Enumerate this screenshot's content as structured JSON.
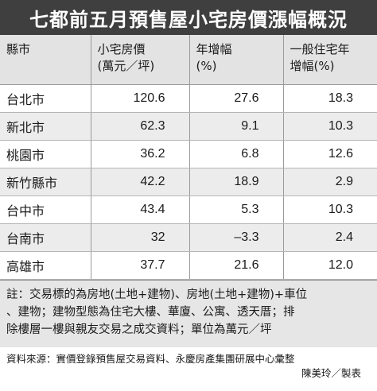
{
  "title": "七都前五月預售屋小宅房價漲幅概況",
  "table": {
    "headers": [
      {
        "lines": [
          "縣市"
        ]
      },
      {
        "lines": [
          "小宅房價",
          "(萬元／坪)"
        ]
      },
      {
        "lines": [
          "年增幅",
          "(%)"
        ]
      },
      {
        "lines": [
          "一般住宅年",
          "增幅(%)"
        ]
      }
    ],
    "rows": [
      {
        "city": "台北市",
        "price": "120.6",
        "yoy": "27.6",
        "general": "18.3"
      },
      {
        "city": "新北市",
        "price": "62.3",
        "yoy": "9.1",
        "general": "10.3"
      },
      {
        "city": "桃園市",
        "price": "36.2",
        "yoy": "6.8",
        "general": "12.6"
      },
      {
        "city": "新竹縣市",
        "price": "42.2",
        "yoy": "18.9",
        "general": "2.9"
      },
      {
        "city": "台中市",
        "price": "43.4",
        "yoy": "5.3",
        "general": "10.3"
      },
      {
        "city": "台南市",
        "price": "32",
        "yoy": "–3.3",
        "general": "2.4"
      },
      {
        "city": "高雄市",
        "price": "37.7",
        "yoy": "21.6",
        "general": "12.0"
      }
    ]
  },
  "note": {
    "lines": [
      "註：交易標的為房地(土地+建物)、房地(土地+建物)+車位",
      "、建物；建物型態為住宅大樓、華廈、公寓、透天厝；排",
      "除樓層一樓與親友交易之成交資料；單位為萬元／坪"
    ]
  },
  "source": "資料來源：實價登錄預售屋交易資料、永慶房產集團研展中心彙整",
  "credit": "陳美玲／製表"
}
